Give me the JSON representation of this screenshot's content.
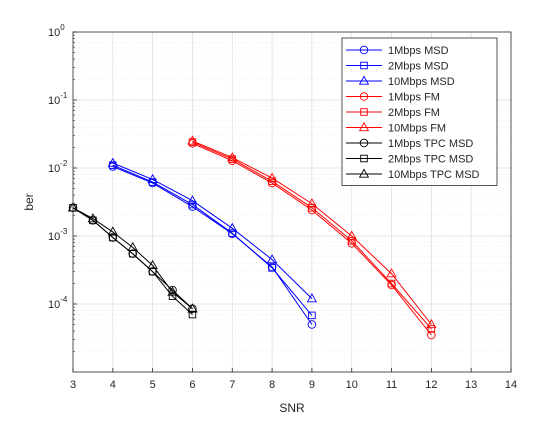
{
  "chart_data": {
    "type": "line",
    "title": "",
    "xlabel": "SNR",
    "ylabel": "ber",
    "xlim": [
      3,
      14
    ],
    "ylim": [
      1e-05,
      1
    ],
    "yscale": "log",
    "grid": true,
    "minor_grid": true,
    "legend_position": "top-right",
    "x_ticks": [
      "3",
      "4",
      "5",
      "6",
      "7",
      "8",
      "9",
      "10",
      "11",
      "12",
      "13",
      "14"
    ],
    "y_ticks": [
      {
        "value": 1,
        "base": "10",
        "exp": "0"
      },
      {
        "value": 0.1,
        "base": "10",
        "exp": "-1"
      },
      {
        "value": 0.01,
        "base": "10",
        "exp": "-2"
      },
      {
        "value": 0.001,
        "base": "10",
        "exp": "-3"
      },
      {
        "value": 0.0001,
        "base": "10",
        "exp": "-4"
      }
    ],
    "series": [
      {
        "name": "1Mbps MSD",
        "color": "#0000ff",
        "marker": "circle",
        "x": [
          4,
          5,
          6,
          7,
          8,
          9
        ],
        "y": [
          0.0105,
          0.006,
          0.0027,
          0.00108,
          0.00035,
          5e-05
        ]
      },
      {
        "name": "2Mbps MSD",
        "color": "#0000ff",
        "marker": "square",
        "x": [
          4,
          5,
          6,
          7,
          8,
          9
        ],
        "y": [
          0.011,
          0.0062,
          0.0029,
          0.0011,
          0.00034,
          6.8e-05
        ]
      },
      {
        "name": "10Mbps MSD",
        "color": "#0000ff",
        "marker": "triangle",
        "x": [
          4,
          5,
          6,
          7,
          8,
          9
        ],
        "y": [
          0.0118,
          0.0068,
          0.0033,
          0.0013,
          0.00045,
          0.00012
        ]
      },
      {
        "name": "1Mbps FM",
        "color": "#ff0000",
        "marker": "circle",
        "x": [
          6,
          7,
          8,
          9,
          10,
          11,
          12
        ],
        "y": [
          0.023,
          0.0128,
          0.006,
          0.0024,
          0.00078,
          0.00019,
          3.5e-05
        ]
      },
      {
        "name": "2Mbps FM",
        "color": "#ff0000",
        "marker": "square",
        "x": [
          6,
          7,
          8,
          9,
          10,
          11,
          12
        ],
        "y": [
          0.024,
          0.0135,
          0.0064,
          0.0026,
          0.00085,
          0.0002,
          4.3e-05
        ]
      },
      {
        "name": "10Mbps FM",
        "color": "#ff0000",
        "marker": "triangle",
        "x": [
          6,
          7,
          8,
          9,
          10,
          11,
          12
        ],
        "y": [
          0.025,
          0.0142,
          0.0071,
          0.003,
          0.001,
          0.00028,
          5e-05
        ]
      },
      {
        "name": "1Mbps TPC MSD",
        "color": "#000000",
        "marker": "circle",
        "x": [
          3,
          3.5,
          4,
          4.5,
          5,
          5.5,
          6
        ],
        "y": [
          0.0026,
          0.0017,
          0.00095,
          0.00055,
          0.0003,
          0.00016,
          8.5e-05
        ]
      },
      {
        "name": "2Mbps TPC MSD",
        "color": "#000000",
        "marker": "square",
        "x": [
          3,
          3.5,
          4,
          4.5,
          5,
          5.5,
          6
        ],
        "y": [
          0.0026,
          0.0017,
          0.00095,
          0.00055,
          0.0003,
          0.00013,
          7e-05
        ]
      },
      {
        "name": "10Mbps TPC MSD",
        "color": "#000000",
        "marker": "triangle",
        "x": [
          3,
          3.5,
          4,
          4.5,
          5,
          5.5,
          6
        ],
        "y": [
          0.0026,
          0.0018,
          0.00115,
          0.00068,
          0.00037,
          0.00015,
          8.5e-05
        ]
      }
    ]
  }
}
